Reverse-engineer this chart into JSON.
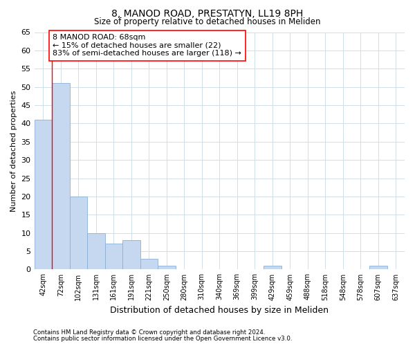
{
  "title": "8, MANOD ROAD, PRESTATYN, LL19 8PH",
  "subtitle": "Size of property relative to detached houses in Meliden",
  "xlabel": "Distribution of detached houses by size in Meliden",
  "ylabel": "Number of detached properties",
  "categories": [
    "42sqm",
    "72sqm",
    "102sqm",
    "131sqm",
    "161sqm",
    "191sqm",
    "221sqm",
    "250sqm",
    "280sqm",
    "310sqm",
    "340sqm",
    "369sqm",
    "399sqm",
    "429sqm",
    "459sqm",
    "488sqm",
    "518sqm",
    "548sqm",
    "578sqm",
    "607sqm",
    "637sqm"
  ],
  "values": [
    41,
    51,
    20,
    10,
    7,
    8,
    3,
    1,
    0,
    0,
    0,
    0,
    0,
    1,
    0,
    0,
    0,
    0,
    0,
    1,
    0
  ],
  "bar_color": "#c5d8ef",
  "bar_edge_color": "#8ab0d4",
  "grid_color": "#d0dfe8",
  "background_color": "#ffffff",
  "ann_line1": "8 MANOD ROAD: 68sqm",
  "ann_line2": "← 15% of detached houses are smaller (22)",
  "ann_line3": "83% of semi-detached houses are larger (118) →",
  "red_line_x": 0.5,
  "ylim": [
    0,
    65
  ],
  "yticks": [
    0,
    5,
    10,
    15,
    20,
    25,
    30,
    35,
    40,
    45,
    50,
    55,
    60,
    65
  ],
  "footer_line1": "Contains HM Land Registry data © Crown copyright and database right 2024.",
  "footer_line2": "Contains public sector information licensed under the Open Government Licence v3.0."
}
